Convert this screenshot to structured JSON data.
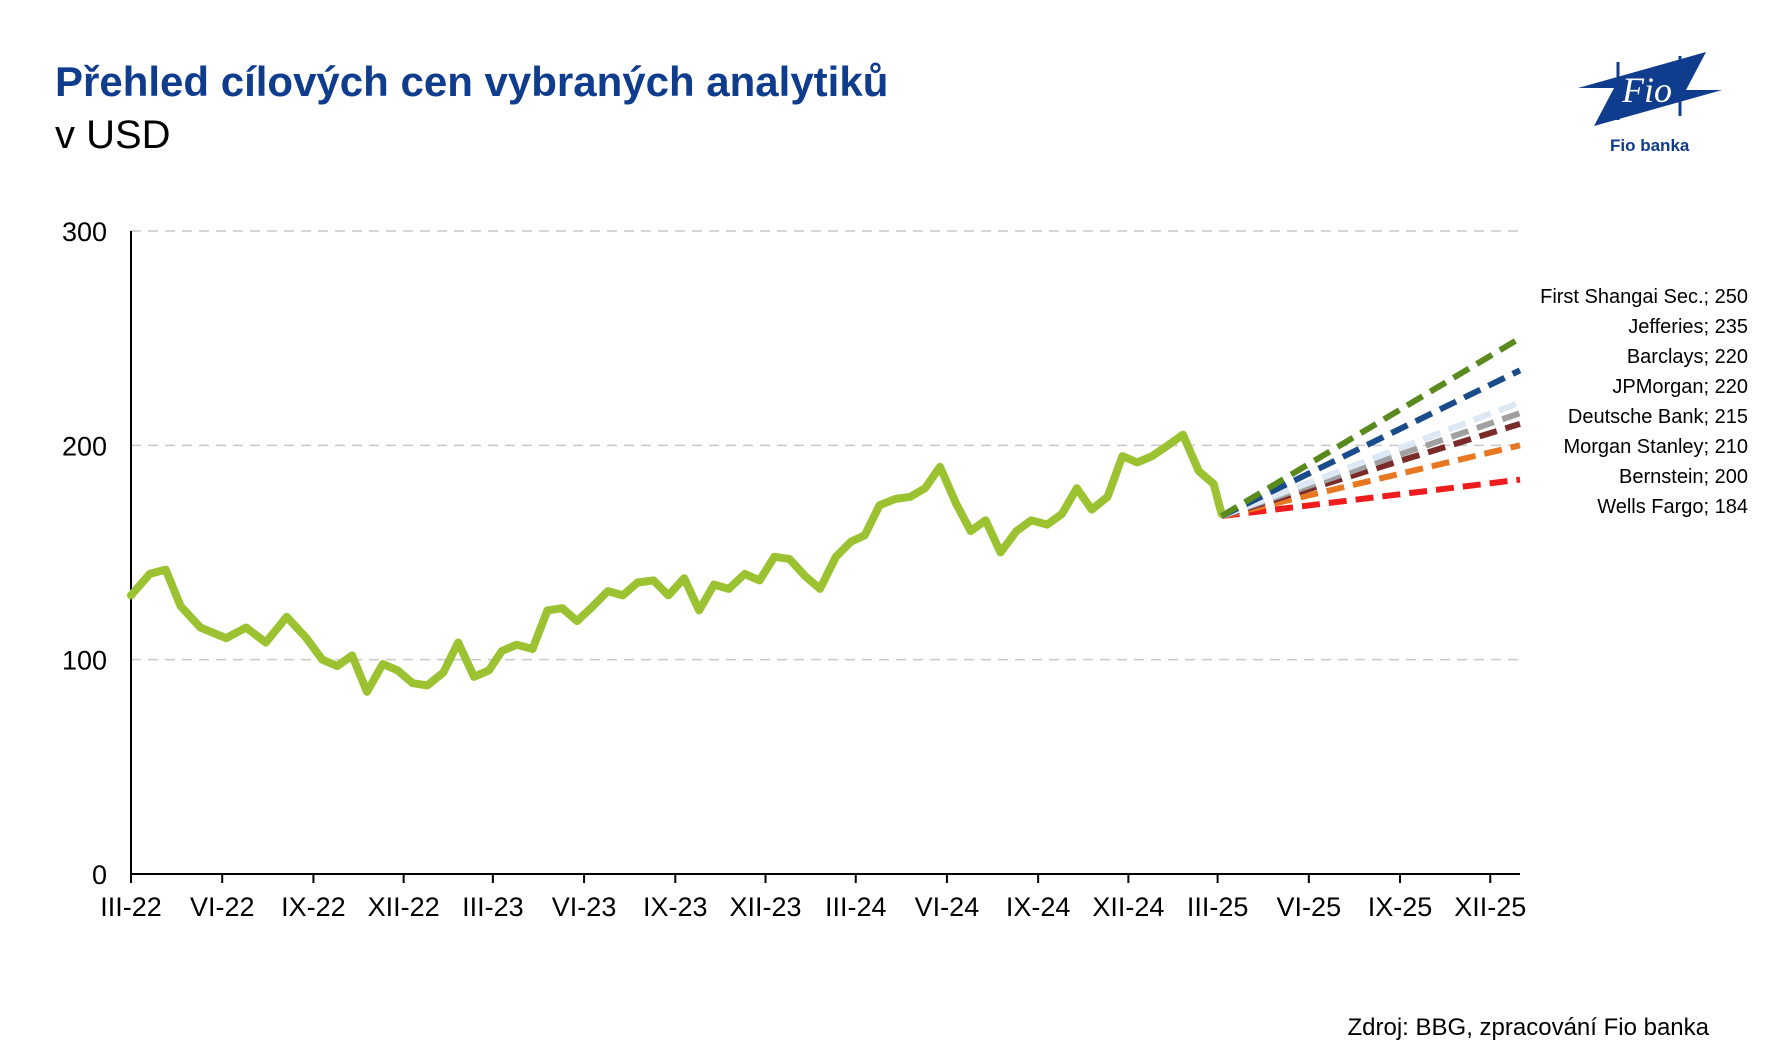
{
  "header": {
    "title": "Přehled cílových cen vybraných analytiků",
    "subtitle": "v USD"
  },
  "logo": {
    "text": "Fio banka",
    "mark": "Fio"
  },
  "footer": {
    "source": "Zdroj: BBG, zpracování Fio banka"
  },
  "colors": {
    "title": "#0f3c8c",
    "price": "#9ac231"
  },
  "chart_data": {
    "type": "line",
    "ylim": [
      0,
      300
    ],
    "yticks": [
      "0",
      "100",
      "200",
      "300"
    ],
    "grid": true,
    "xticks": [
      "III-22",
      "VI-22",
      "IX-22",
      "XII-22",
      "III-23",
      "VI-23",
      "IX-23",
      "XII-23",
      "III-24",
      "VI-24",
      "IX-24",
      "XII-24",
      "III-25",
      "VI-25",
      "IX-25",
      "XII-25"
    ],
    "price": {
      "color": "#9ac231",
      "x": [
        "2022-03-01",
        "2022-03-20",
        "2022-04-05",
        "2022-04-20",
        "2022-05-10",
        "2022-06-05",
        "2022-06-25",
        "2022-07-15",
        "2022-08-05",
        "2022-08-25",
        "2022-09-10",
        "2022-09-25",
        "2022-10-10",
        "2022-10-25",
        "2022-11-10",
        "2022-11-25",
        "2022-12-10",
        "2022-12-25",
        "2023-01-10",
        "2023-01-25",
        "2023-02-10",
        "2023-02-25",
        "2023-03-10",
        "2023-03-25",
        "2023-04-10",
        "2023-04-25",
        "2023-05-10",
        "2023-05-25",
        "2023-06-10",
        "2023-06-25",
        "2023-07-10",
        "2023-07-25",
        "2023-08-10",
        "2023-08-25",
        "2023-09-10",
        "2023-09-25",
        "2023-10-10",
        "2023-10-25",
        "2023-11-10",
        "2023-11-25",
        "2023-12-10",
        "2023-12-25",
        "2024-01-10",
        "2024-01-25",
        "2024-02-10",
        "2024-02-25",
        "2024-03-10",
        "2024-03-25",
        "2024-04-10",
        "2024-04-25",
        "2024-05-10",
        "2024-05-25",
        "2024-06-10",
        "2024-06-25",
        "2024-07-10",
        "2024-07-25",
        "2024-08-10",
        "2024-08-25",
        "2024-09-10",
        "2024-09-25",
        "2024-10-10",
        "2024-10-25",
        "2024-11-10",
        "2024-11-25",
        "2024-12-10",
        "2024-12-25",
        "2025-01-10",
        "2025-01-25",
        "2025-02-10",
        "2025-02-25",
        "2025-03-05"
      ],
      "values": [
        130,
        140,
        142,
        125,
        115,
        110,
        115,
        108,
        120,
        110,
        100,
        97,
        102,
        85,
        98,
        95,
        89,
        88,
        94,
        108,
        92,
        95,
        104,
        107,
        105,
        123,
        124,
        118,
        125,
        132,
        130,
        136,
        137,
        130,
        138,
        123,
        135,
        133,
        140,
        137,
        148,
        147,
        139,
        133,
        148,
        155,
        158,
        172,
        175,
        176,
        180,
        190,
        173,
        160,
        165,
        150,
        160,
        165,
        163,
        168,
        180,
        170,
        176,
        195,
        192,
        195,
        200,
        205,
        188,
        182,
        168
      ]
    },
    "targets": {
      "start": "2025-03-05",
      "end": "2025-12-31",
      "start_value": 167,
      "series": [
        {
          "name": "First Shangai Sec.",
          "value": 250,
          "label": "First Shangai Sec.; 250",
          "color": "#5a8a1e"
        },
        {
          "name": "Jefferies",
          "value": 235,
          "label": "Jefferies; 235",
          "color": "#1a4c8c"
        },
        {
          "name": "Barclays",
          "value": 220,
          "label": "Barclays; 220",
          "color": "#dce8f4"
        },
        {
          "name": "JPMorgan",
          "value": 220,
          "label": "JPMorgan; 220",
          "color": "#c8d6e8"
        },
        {
          "name": "Deutsche Bank",
          "value": 215,
          "label": "Deutsche Bank; 215",
          "color": "#a0a0a0"
        },
        {
          "name": "Morgan Stanley",
          "value": 210,
          "label": "Morgan Stanley; 210",
          "color": "#7b2a2a"
        },
        {
          "name": "Bernstein",
          "value": 200,
          "label": "Bernstein; 200",
          "color": "#e87722"
        },
        {
          "name": "Wells Fargo",
          "value": 184,
          "label": "Wells Fargo; 184",
          "color": "#ee1c1c"
        }
      ]
    }
  }
}
